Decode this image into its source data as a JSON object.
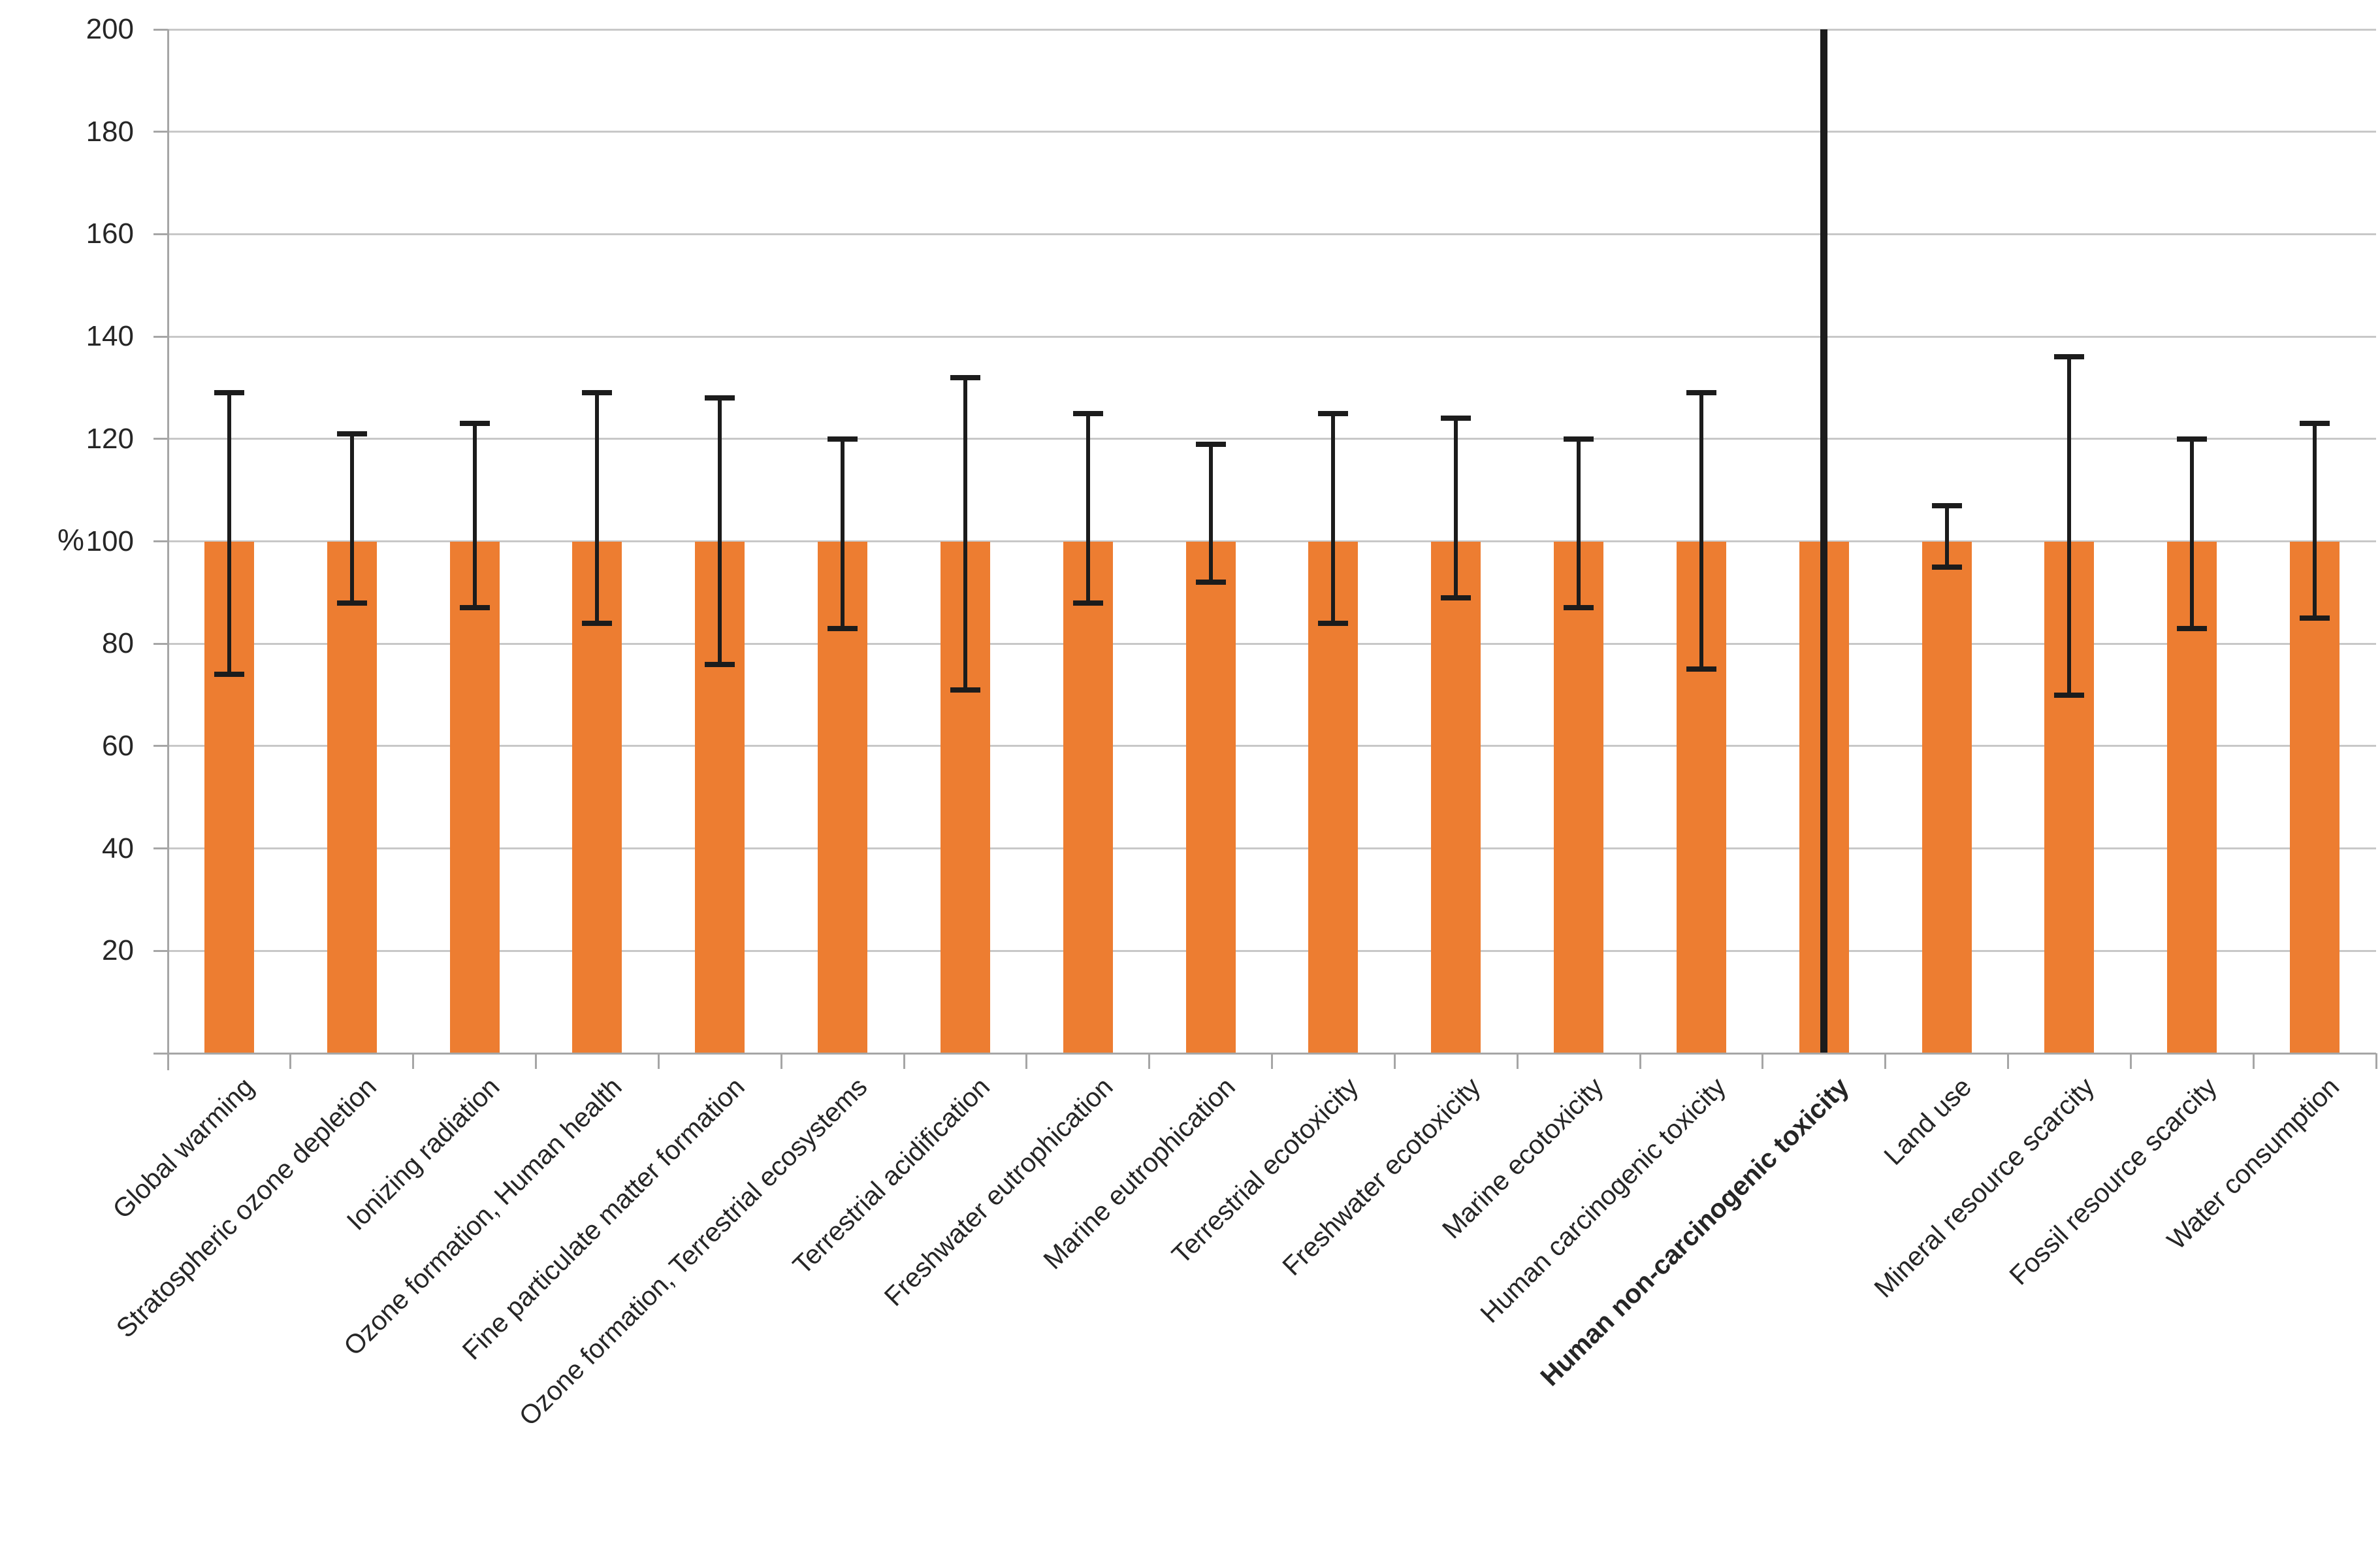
{
  "chart_data": {
    "type": "bar",
    "title": "",
    "xlabel": "",
    "ylabel": "%",
    "ylim": [
      0,
      200
    ],
    "ytick_step": 20,
    "yticks": [
      20,
      40,
      60,
      80,
      100,
      120,
      140,
      160,
      180,
      200
    ],
    "grid": true,
    "legend": false,
    "bar_color": "#ED7D31",
    "error_bar_color": "#1C1C1C",
    "axis_color": "#A6A6A6",
    "gridline_color": "#C8C8C8",
    "tick_label_color": "#262626",
    "categories": [
      "Global warming",
      "Stratospheric ozone depletion",
      "Ionizing radiation",
      "Ozone formation, Human health",
      "Fine particulate matter formation",
      "Ozone formation, Terrestrial ecosystems",
      "Terrestrial acidification",
      "Freshwater eutrophication",
      "Marine eutrophication",
      "Terrestrial ecotoxicity",
      "Freshwater ecotoxicity",
      "Marine ecotoxicity",
      "Human carcinogenic toxicity",
      "Human non-carcinogenic toxicity",
      "Land use",
      "Mineral resource scarcity",
      "Fossil resource scarcity",
      "Water consumption"
    ],
    "values": [
      100,
      100,
      100,
      100,
      100,
      100,
      100,
      100,
      100,
      100,
      100,
      100,
      100,
      100,
      100,
      100,
      100,
      100
    ],
    "error_bars": [
      {
        "low": 74,
        "high": 129
      },
      {
        "low": 88,
        "high": 121
      },
      {
        "low": 87,
        "high": 123
      },
      {
        "low": 84,
        "high": 129
      },
      {
        "low": 76,
        "high": 128
      },
      {
        "low": 83,
        "high": 120
      },
      {
        "low": 71,
        "high": 132
      },
      {
        "low": 88,
        "high": 125
      },
      {
        "low": 92,
        "high": 119
      },
      {
        "low": 84,
        "high": 125
      },
      {
        "low": 89,
        "high": 124
      },
      {
        "low": 87,
        "high": 120
      },
      {
        "low": 75,
        "high": 129
      },
      {
        "low": 0,
        "high": 200,
        "clipped": true
      },
      {
        "low": 95,
        "high": 107
      },
      {
        "low": 70,
        "high": 136
      },
      {
        "low": 83,
        "high": 120
      },
      {
        "low": 85,
        "high": 123
      }
    ],
    "emphasized_category": "Human non-carcinogenic toxicity",
    "emphasized_category_index": 13
  }
}
